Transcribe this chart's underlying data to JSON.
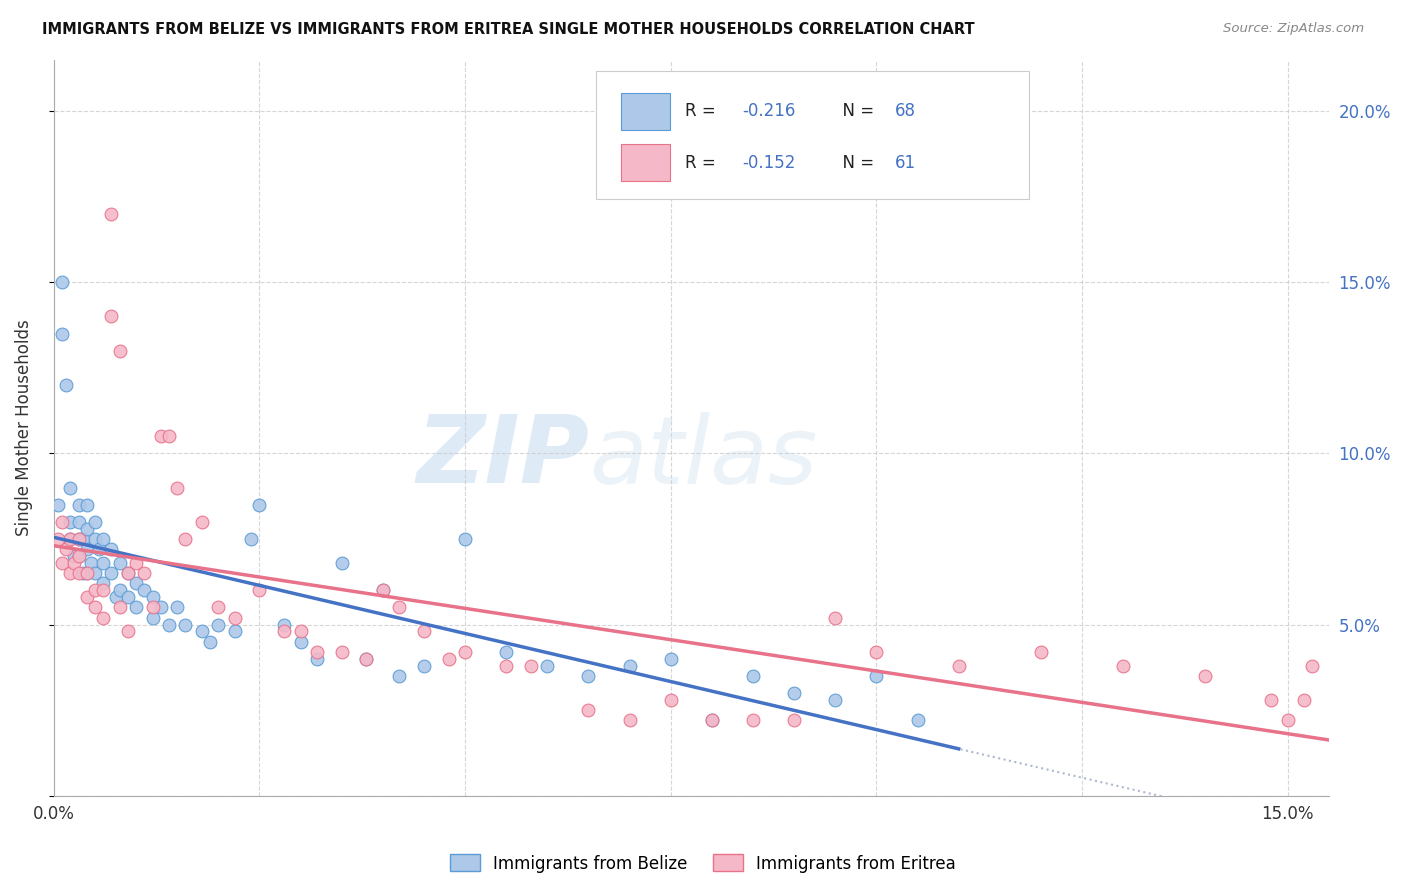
{
  "title": "IMMIGRANTS FROM BELIZE VS IMMIGRANTS FROM ERITREA SINGLE MOTHER HOUSEHOLDS CORRELATION CHART",
  "source": "Source: ZipAtlas.com",
  "ylabel": "Single Mother Households",
  "xlim": [
    0.0,
    0.155
  ],
  "ylim": [
    0.0,
    0.215
  ],
  "xticks": [
    0.0,
    0.025,
    0.05,
    0.075,
    0.1,
    0.125,
    0.15
  ],
  "yticks_right": [
    0.0,
    0.05,
    0.1,
    0.15,
    0.2
  ],
  "ytick_right_labels": [
    "",
    "5.0%",
    "10.0%",
    "15.0%",
    "20.0%"
  ],
  "belize_color": "#adc8e8",
  "eritrea_color": "#f5b8c8",
  "belize_edge": "#5b9bd5",
  "eritrea_edge": "#e8728a",
  "trend_belize_color": "#4472c4",
  "trend_eritrea_color": "#e8728a",
  "dashed_color": "#b0b8d0",
  "watermark_zip": "ZIP",
  "watermark_atlas": "atlas",
  "legend_r_belize": "R = -0.216",
  "legend_n_belize": "N = 68",
  "legend_r_eritrea": "R = -0.152",
  "legend_n_eritrea": "N = 61",
  "belize_x": [
    0.0005,
    0.001,
    0.001,
    0.0015,
    0.002,
    0.002,
    0.002,
    0.0025,
    0.003,
    0.003,
    0.003,
    0.003,
    0.0035,
    0.0035,
    0.004,
    0.004,
    0.004,
    0.004,
    0.0045,
    0.005,
    0.005,
    0.005,
    0.0055,
    0.006,
    0.006,
    0.006,
    0.007,
    0.007,
    0.0075,
    0.008,
    0.008,
    0.009,
    0.009,
    0.01,
    0.01,
    0.011,
    0.012,
    0.012,
    0.013,
    0.014,
    0.015,
    0.016,
    0.018,
    0.019,
    0.02,
    0.022,
    0.024,
    0.025,
    0.028,
    0.03,
    0.032,
    0.035,
    0.038,
    0.04,
    0.042,
    0.045,
    0.05,
    0.055,
    0.06,
    0.065,
    0.07,
    0.075,
    0.08,
    0.085,
    0.09,
    0.095,
    0.1,
    0.105
  ],
  "belize_y": [
    0.085,
    0.15,
    0.135,
    0.12,
    0.09,
    0.08,
    0.075,
    0.07,
    0.085,
    0.08,
    0.075,
    0.07,
    0.075,
    0.065,
    0.085,
    0.078,
    0.072,
    0.065,
    0.068,
    0.08,
    0.075,
    0.065,
    0.072,
    0.075,
    0.068,
    0.062,
    0.072,
    0.065,
    0.058,
    0.068,
    0.06,
    0.065,
    0.058,
    0.062,
    0.055,
    0.06,
    0.058,
    0.052,
    0.055,
    0.05,
    0.055,
    0.05,
    0.048,
    0.045,
    0.05,
    0.048,
    0.075,
    0.085,
    0.05,
    0.045,
    0.04,
    0.068,
    0.04,
    0.06,
    0.035,
    0.038,
    0.075,
    0.042,
    0.038,
    0.035,
    0.038,
    0.04,
    0.022,
    0.035,
    0.03,
    0.028,
    0.035,
    0.022
  ],
  "eritrea_x": [
    0.0005,
    0.001,
    0.001,
    0.0015,
    0.002,
    0.002,
    0.0025,
    0.003,
    0.003,
    0.003,
    0.004,
    0.004,
    0.005,
    0.005,
    0.006,
    0.006,
    0.007,
    0.007,
    0.008,
    0.008,
    0.009,
    0.009,
    0.01,
    0.011,
    0.012,
    0.013,
    0.014,
    0.015,
    0.016,
    0.018,
    0.02,
    0.022,
    0.025,
    0.028,
    0.03,
    0.032,
    0.035,
    0.038,
    0.04,
    0.042,
    0.045,
    0.048,
    0.05,
    0.055,
    0.058,
    0.065,
    0.07,
    0.075,
    0.08,
    0.085,
    0.09,
    0.095,
    0.1,
    0.11,
    0.12,
    0.13,
    0.14,
    0.148,
    0.15,
    0.152,
    0.153
  ],
  "eritrea_y": [
    0.075,
    0.08,
    0.068,
    0.072,
    0.075,
    0.065,
    0.068,
    0.075,
    0.065,
    0.07,
    0.065,
    0.058,
    0.06,
    0.055,
    0.06,
    0.052,
    0.17,
    0.14,
    0.13,
    0.055,
    0.065,
    0.048,
    0.068,
    0.065,
    0.055,
    0.105,
    0.105,
    0.09,
    0.075,
    0.08,
    0.055,
    0.052,
    0.06,
    0.048,
    0.048,
    0.042,
    0.042,
    0.04,
    0.06,
    0.055,
    0.048,
    0.04,
    0.042,
    0.038,
    0.038,
    0.025,
    0.022,
    0.028,
    0.022,
    0.022,
    0.022,
    0.052,
    0.042,
    0.038,
    0.042,
    0.038,
    0.035,
    0.028,
    0.022,
    0.028,
    0.038
  ],
  "figsize": [
    14.06,
    8.92
  ],
  "dpi": 100
}
